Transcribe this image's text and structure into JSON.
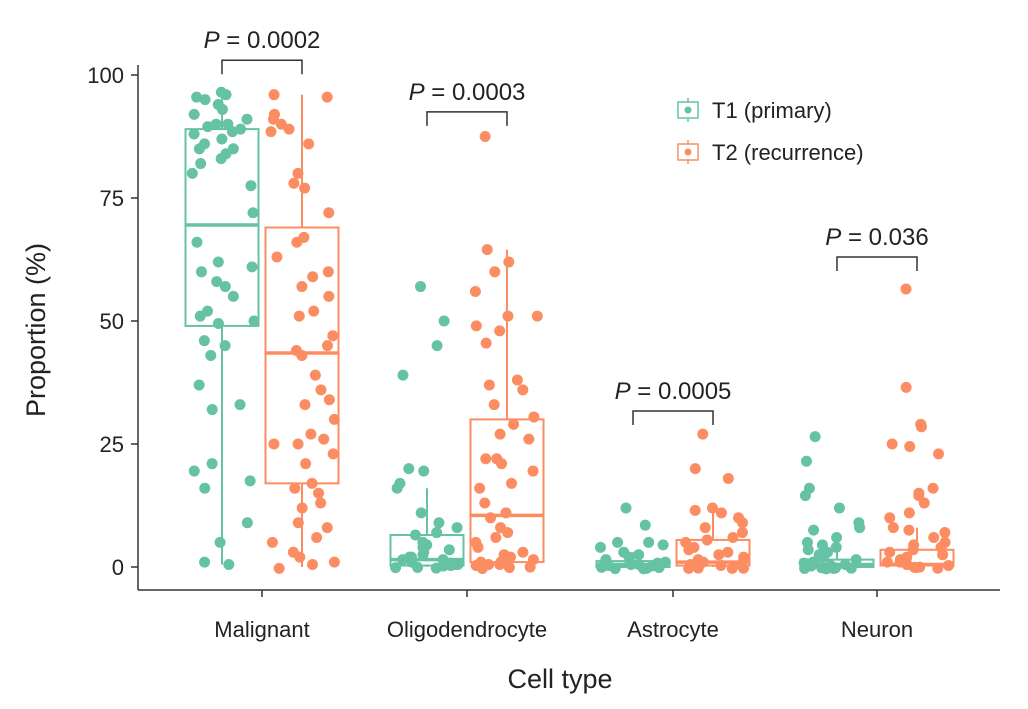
{
  "chart_data": {
    "type": "box",
    "xlabel": "Cell type",
    "ylabel": "Proportion (%)",
    "ylim": [
      0,
      100
    ],
    "yticks": [
      0,
      25,
      50,
      75,
      100
    ],
    "grid": false,
    "legend_position": "top-right",
    "categories": [
      "Malignant",
      "Oligodendrocyte",
      "Astrocyte",
      "Neuron"
    ],
    "series": [
      {
        "name": "T1 (primary)",
        "color": "#66c2a5",
        "boxes": [
          {
            "whisker_low": 0.5,
            "q1": 49,
            "median": 69.5,
            "q3": 89,
            "whisker_high": 96.5
          },
          {
            "whisker_low": 0,
            "q1": 0.3,
            "median": 1.5,
            "q3": 6.5,
            "whisker_high": 16
          },
          {
            "whisker_low": 0,
            "q1": 0,
            "median": 0.5,
            "q3": 1.2,
            "whisker_high": 3
          },
          {
            "whisker_low": 0,
            "q1": 0,
            "median": 0.5,
            "q3": 1.5,
            "whisker_high": 3.5
          }
        ],
        "points": [
          [
            96.5,
            96,
            95.5,
            95,
            94,
            93,
            92,
            91,
            90,
            90,
            89.5,
            89,
            88.5,
            88,
            87,
            86,
            85,
            85,
            84,
            83,
            82,
            80,
            77.5,
            72,
            66,
            62,
            61,
            60,
            58,
            57,
            55,
            52,
            51,
            50,
            49.5,
            46,
            45,
            43,
            37,
            33,
            32,
            21,
            19.5,
            17.5,
            16,
            9,
            5,
            1,
            0.5
          ],
          [
            57,
            50,
            45,
            39,
            20,
            19.5,
            17,
            16,
            11,
            9,
            7,
            8,
            6.5,
            5,
            4.5,
            4,
            3.5,
            3,
            2.5,
            2,
            2,
            1.5,
            1.5,
            1,
            1,
            0.8,
            0.5,
            0.5,
            0.3,
            0.2,
            0,
            0,
            0
          ],
          [
            12,
            8.5,
            5,
            5,
            4.5,
            4,
            3,
            2.5,
            2,
            1.5,
            1,
            1,
            0.8,
            0.5,
            0.5,
            0.3,
            0.2,
            0,
            0,
            0,
            0,
            0
          ],
          [
            26.5,
            21.5,
            16,
            14.5,
            12,
            9,
            8,
            7.5,
            6,
            5,
            4.5,
            4,
            3.5,
            3,
            2.5,
            2,
            1.5,
            1,
            1,
            0.8,
            0.5,
            0.5,
            0.3,
            0.2,
            0,
            0,
            0,
            0,
            0,
            0
          ]
        ]
      },
      {
        "name": "T2 (recurrence)",
        "color": "#fc8d62",
        "boxes": [
          {
            "whisker_low": 0,
            "q1": 17,
            "median": 43.5,
            "q3": 69,
            "whisker_high": 96
          },
          {
            "whisker_low": 0,
            "q1": 1,
            "median": 10.5,
            "q3": 30,
            "whisker_high": 64.5
          },
          {
            "whisker_low": 0,
            "q1": 0.3,
            "median": 1,
            "q3": 5.5,
            "whisker_high": 12
          },
          {
            "whisker_low": 0,
            "q1": 0.3,
            "median": 0.5,
            "q3": 3.5,
            "whisker_high": 8
          }
        ],
        "points": [
          [
            96,
            95.5,
            92,
            91,
            90,
            89,
            88.5,
            86,
            80,
            78,
            77,
            72,
            67,
            66,
            63,
            60,
            59,
            57,
            55,
            52,
            51,
            47,
            45,
            44,
            43,
            39,
            36,
            34,
            33,
            30,
            27,
            26,
            25,
            25,
            23,
            21,
            17,
            16,
            15,
            13,
            12,
            9,
            8,
            6,
            5,
            3,
            2,
            1,
            0.5,
            0
          ],
          [
            87.5,
            64.5,
            62,
            60,
            56,
            51,
            51,
            49,
            48,
            45.5,
            38,
            37,
            36,
            33,
            30.5,
            29,
            27,
            26,
            22,
            22,
            21,
            19.5,
            17,
            16,
            13,
            11,
            10,
            8,
            7,
            6,
            5,
            4,
            3,
            2.5,
            2,
            1.5,
            1,
            1,
            0.5,
            0.5,
            0.3,
            0,
            0,
            0
          ],
          [
            27,
            20,
            18,
            12,
            11.5,
            11,
            10,
            9,
            8,
            7,
            6,
            5.5,
            5,
            4,
            3.5,
            3,
            2.5,
            2,
            1.5,
            1,
            1,
            0.5,
            0.5,
            0.3,
            0,
            0,
            0,
            0
          ],
          [
            56.5,
            36.5,
            29,
            28.5,
            25,
            24.5,
            23,
            16,
            15,
            14.5,
            13,
            11,
            10,
            8,
            7.5,
            7,
            6,
            5,
            4.5,
            4,
            3.5,
            3,
            2.5,
            2,
            1.5,
            1,
            1,
            0.5,
            0.5,
            0.3,
            0,
            0,
            0,
            0
          ]
        ]
      }
    ],
    "annotations": [
      {
        "category": "Malignant",
        "text_prefix": "P",
        "text": " = 0.0002",
        "bracket_y": 103
      },
      {
        "category": "Oligodendrocyte",
        "text_prefix": "P",
        "text": " = 0.0003",
        "bracket_y": 92.5
      },
      {
        "category": "Astrocyte",
        "text_prefix": "P",
        "text": " = 0.0005",
        "bracket_y": 31.7
      },
      {
        "category": "Neuron",
        "text_prefix": "P",
        "text": " = 0.036",
        "bracket_y": 63
      }
    ]
  }
}
